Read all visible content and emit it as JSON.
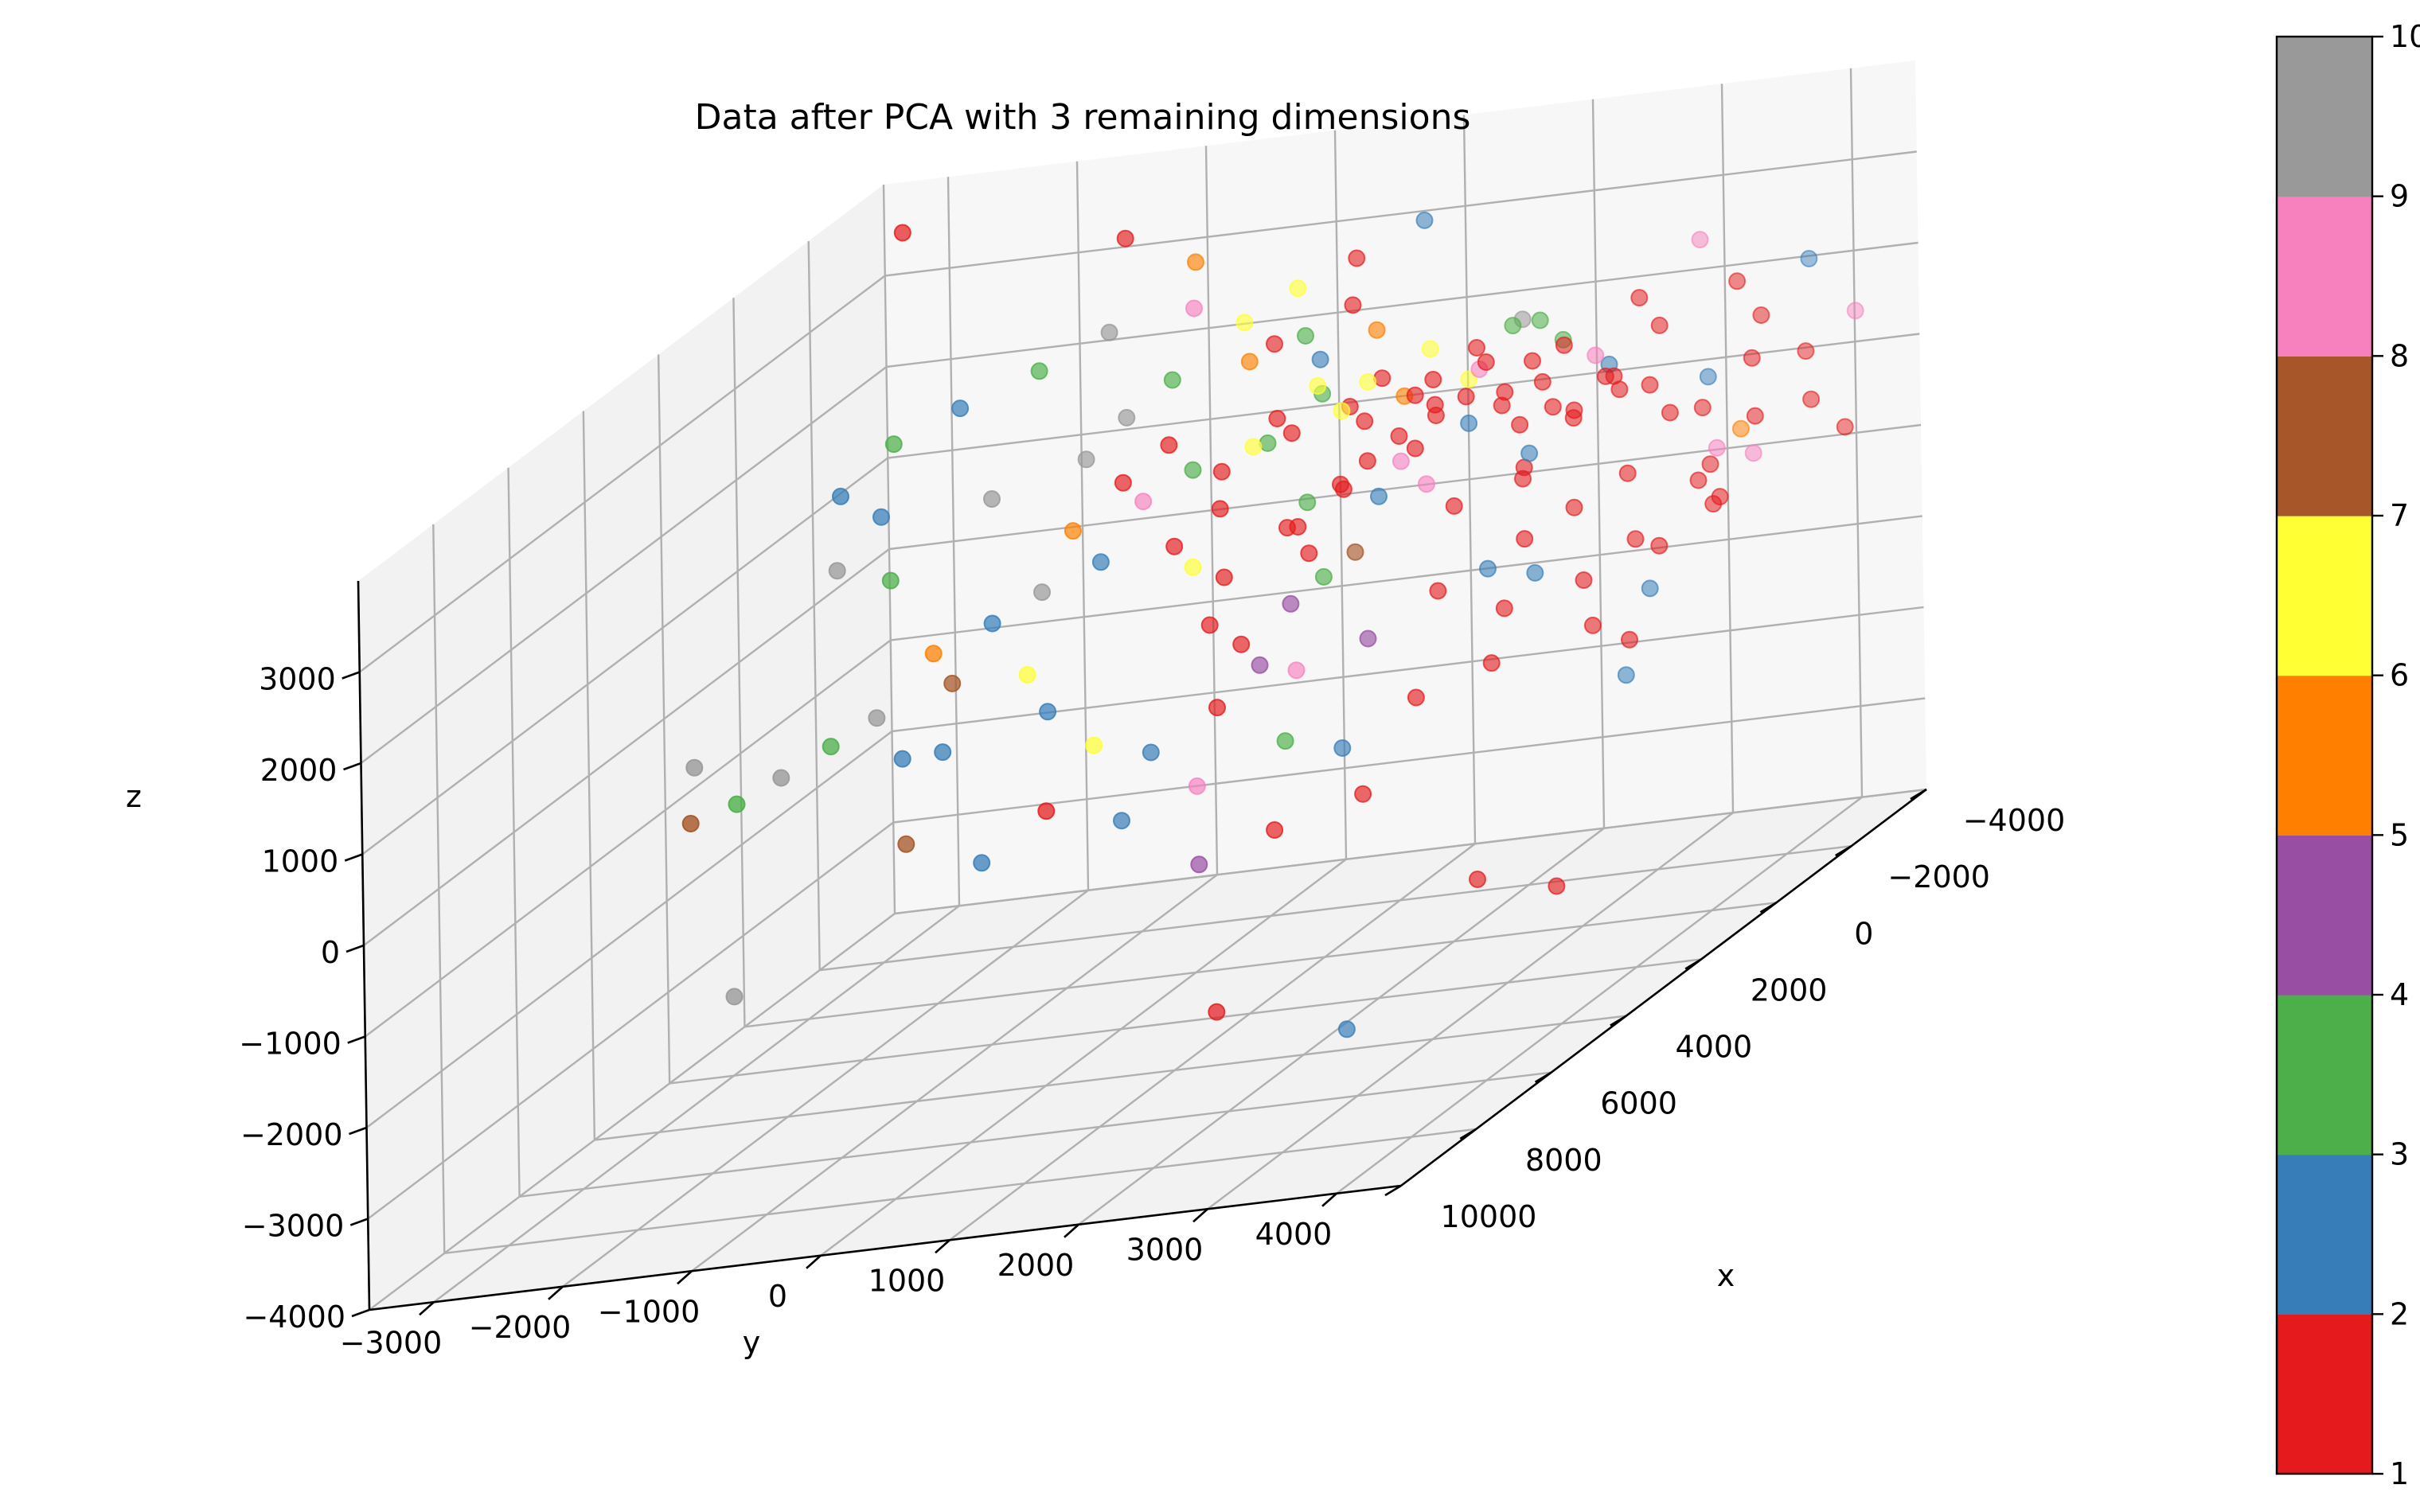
{
  "chart_data": {
    "type": "scatter",
    "projection": "3d",
    "title": "Data after PCA with 3 remaining dimensions",
    "xlabel": "x",
    "ylabel": "y",
    "zlabel": "z",
    "xlim": [
      -4000,
      10000
    ],
    "ylim": [
      -3500,
      4500
    ],
    "zlim": [
      -4000,
      4000
    ],
    "xticks": [
      "−4000",
      "−2000",
      "0",
      "2000",
      "4000",
      "6000",
      "8000",
      "10000"
    ],
    "yticks": [
      "−3000",
      "−2000",
      "−1000",
      "0",
      "1000",
      "2000",
      "3000",
      "4000"
    ],
    "zticks": [
      "−4000",
      "−3000",
      "−2000",
      "−1000",
      "0",
      "1000",
      "2000",
      "3000"
    ],
    "grid": true,
    "colormap": "Set1",
    "colorbar": {
      "range": [
        1,
        10
      ],
      "ticks": [
        "1",
        "2",
        "3",
        "4",
        "5",
        "6",
        "7",
        "8",
        "9",
        "10"
      ],
      "colors": [
        "#e41a1c",
        "#377eb8",
        "#4daf4a",
        "#984ea3",
        "#ff7f00",
        "#ffff33",
        "#a65628",
        "#f781bf",
        "#999999"
      ]
    },
    "points": [
      {
        "x": -3800,
        "y": -3300,
        "z": 3500,
        "c": 1
      },
      {
        "x": 600,
        "y": -3400,
        "z": -3500,
        "c": 9
      },
      {
        "x": 800,
        "y": 3600,
        "z": -1100,
        "c": 2
      },
      {
        "x": -2000,
        "y": 4500,
        "z": 600,
        "c": 1
      },
      {
        "x": -1500,
        "y": 3600,
        "z": 500,
        "c": 1
      },
      {
        "x": 500,
        "y": 3600,
        "z": 300,
        "c": 1
      },
      {
        "x": 1800,
        "y": 3200,
        "z": 400,
        "c": 2
      },
      {
        "x": -500,
        "y": 3800,
        "z": 600,
        "c": 1
      },
      {
        "x": -1300,
        "y": 3900,
        "z": 900,
        "c": 5
      },
      {
        "x": -1000,
        "y": 3800,
        "z": 800,
        "c": 8
      },
      {
        "x": -2500,
        "y": 3300,
        "z": 1200,
        "c": 2
      },
      {
        "x": -2000,
        "y": 3400,
        "z": 1000,
        "c": 1
      },
      {
        "x": -300,
        "y": 2500,
        "z": 900,
        "c": 1
      },
      {
        "x": 0,
        "y": 2600,
        "z": 1100,
        "c": 1
      },
      {
        "x": 200,
        "y": 2700,
        "z": 1300,
        "c": 2
      },
      {
        "x": -1000,
        "y": 2700,
        "z": 1400,
        "c": 1
      },
      {
        "x": -1500,
        "y": 2800,
        "z": 1600,
        "c": 1
      },
      {
        "x": -1200,
        "y": 2400,
        "z": 1700,
        "c": 1
      },
      {
        "x": -800,
        "y": 2200,
        "z": 1600,
        "c": 1
      },
      {
        "x": -600,
        "y": 2000,
        "z": 1500,
        "c": 2
      },
      {
        "x": -400,
        "y": 1800,
        "z": 1800,
        "c": 1
      },
      {
        "x": -200,
        "y": 2100,
        "z": 1900,
        "c": 1
      },
      {
        "x": -600,
        "y": 2500,
        "z": 2100,
        "c": 1
      },
      {
        "x": -900,
        "y": 2000,
        "z": 2000,
        "c": 8
      },
      {
        "x": -1300,
        "y": 1800,
        "z": 1800,
        "c": 6
      },
      {
        "x": -1100,
        "y": 1600,
        "z": 1500,
        "c": 1
      },
      {
        "x": -800,
        "y": 1400,
        "z": 1400,
        "c": 1
      },
      {
        "x": -500,
        "y": 1500,
        "z": 1200,
        "c": 8
      },
      {
        "x": -300,
        "y": 1300,
        "z": 1300,
        "c": 1
      },
      {
        "x": 0,
        "y": 1200,
        "z": 1100,
        "c": 1
      },
      {
        "x": 100,
        "y": 1500,
        "z": 1000,
        "c": 2
      },
      {
        "x": -600,
        "y": 1000,
        "z": 1000,
        "c": 1
      },
      {
        "x": -400,
        "y": 800,
        "z": 900,
        "c": 3
      },
      {
        "x": -200,
        "y": 700,
        "z": 700,
        "c": 1
      },
      {
        "x": 200,
        "y": 900,
        "z": 800,
        "c": 1
      },
      {
        "x": 600,
        "y": 1100,
        "z": 600,
        "c": 1
      },
      {
        "x": 400,
        "y": 1400,
        "z": 500,
        "c": 7
      },
      {
        "x": 900,
        "y": 1300,
        "z": 400,
        "c": 3
      },
      {
        "x": 1100,
        "y": 1100,
        "z": 200,
        "c": 4
      },
      {
        "x": 1400,
        "y": 800,
        "z": -100,
        "c": 1
      },
      {
        "x": 1600,
        "y": 1000,
        "z": -300,
        "c": 4
      },
      {
        "x": 1200,
        "y": 500,
        "z": 100,
        "c": 1
      },
      {
        "x": 800,
        "y": 500,
        "z": 500,
        "c": 1
      },
      {
        "x": 600,
        "y": 200,
        "z": 600,
        "c": 6
      },
      {
        "x": 400,
        "y": 0,
        "z": 800,
        "c": 1
      },
      {
        "x": 200,
        "y": 300,
        "z": 1100,
        "c": 1
      },
      {
        "x": -200,
        "y": 200,
        "z": 1400,
        "c": 1
      },
      {
        "x": -400,
        "y": 500,
        "z": 1600,
        "c": 3
      },
      {
        "x": -700,
        "y": 300,
        "z": 1500,
        "c": 6
      },
      {
        "x": -1000,
        "y": 400,
        "z": 1700,
        "c": 1
      },
      {
        "x": -1400,
        "y": 600,
        "z": 1900,
        "c": 6
      },
      {
        "x": -1700,
        "y": 900,
        "z": 1800,
        "c": 6
      },
      {
        "x": -2000,
        "y": 1300,
        "z": 2000,
        "c": 6
      },
      {
        "x": -2200,
        "y": 1600,
        "z": 1900,
        "c": 1
      },
      {
        "x": -1800,
        "y": 2000,
        "z": 2200,
        "c": 3
      },
      {
        "x": -1500,
        "y": 2300,
        "z": 2300,
        "c": 3
      },
      {
        "x": -1100,
        "y": 2600,
        "z": 2100,
        "c": 1
      },
      {
        "x": -900,
        "y": 2900,
        "z": 2000,
        "c": 8
      },
      {
        "x": -700,
        "y": 3100,
        "z": 1800,
        "c": 1
      },
      {
        "x": -500,
        "y": 3200,
        "z": 1700,
        "c": 1
      },
      {
        "x": -300,
        "y": 2900,
        "z": 1500,
        "c": 1
      },
      {
        "x": -100,
        "y": 2800,
        "z": 1700,
        "c": 1
      },
      {
        "x": 100,
        "y": 2600,
        "z": 1600,
        "c": 1
      },
      {
        "x": -200,
        "y": 2400,
        "z": 1900,
        "c": 1
      },
      {
        "x": -400,
        "y": 2200,
        "z": 2200,
        "c": 1
      },
      {
        "x": -700,
        "y": 1700,
        "z": 2000,
        "c": 1
      },
      {
        "x": -900,
        "y": 1500,
        "z": 1800,
        "c": 1
      },
      {
        "x": -1300,
        "y": 1300,
        "z": 1700,
        "c": 5
      },
      {
        "x": -1600,
        "y": 900,
        "z": 1400,
        "c": 1
      },
      {
        "x": -1900,
        "y": 700,
        "z": 1500,
        "c": 1
      },
      {
        "x": -2200,
        "y": 400,
        "z": 1600,
        "c": 3
      },
      {
        "x": -2500,
        "y": 300,
        "z": 1900,
        "c": 2
      },
      {
        "x": -2800,
        "y": 100,
        "z": 2100,
        "c": 3
      },
      {
        "x": -3000,
        "y": -200,
        "z": 2000,
        "c": 1
      },
      {
        "x": -2900,
        "y": -400,
        "z": 2300,
        "c": 6
      },
      {
        "x": -3300,
        "y": -100,
        "z": 2500,
        "c": 6
      },
      {
        "x": -3500,
        "y": 300,
        "z": 2700,
        "c": 1
      },
      {
        "x": -2700,
        "y": 500,
        "z": 2400,
        "c": 1
      },
      {
        "x": -2300,
        "y": 800,
        "z": 2200,
        "c": 5
      },
      {
        "x": -3600,
        "y": 800,
        "z": 3000,
        "c": 2
      },
      {
        "x": -3000,
        "y": -800,
        "z": 3000,
        "c": 5
      },
      {
        "x": -3200,
        "y": -1400,
        "z": 3300,
        "c": 1
      },
      {
        "x": -2000,
        "y": -700,
        "z": 2000,
        "c": 3
      },
      {
        "x": -1800,
        "y": -1000,
        "z": 1700,
        "c": 9
      },
      {
        "x": -1400,
        "y": -1200,
        "z": 1400,
        "c": 9
      },
      {
        "x": -1000,
        "y": -800,
        "z": 1200,
        "c": 1
      },
      {
        "x": -1200,
        "y": -500,
        "z": 1500,
        "c": 1
      },
      {
        "x": -800,
        "y": -200,
        "z": 1300,
        "c": 3
      },
      {
        "x": -500,
        "y": -500,
        "z": 1100,
        "c": 8
      },
      {
        "x": 0,
        "y": -900,
        "z": 1000,
        "c": 5
      },
      {
        "x": 300,
        "y": -600,
        "z": 700,
        "c": 2
      },
      {
        "x": 500,
        "y": -1000,
        "z": 500,
        "c": 9
      },
      {
        "x": 800,
        "y": -1300,
        "z": 300,
        "c": 2
      },
      {
        "x": 1000,
        "y": -1700,
        "z": 100,
        "c": 5
      },
      {
        "x": 1200,
        "y": -1500,
        "z": -200,
        "c": 7
      },
      {
        "x": 1500,
        "y": -2000,
        "z": -400,
        "c": 9
      },
      {
        "x": 1700,
        "y": -2300,
        "z": -600,
        "c": 3
      },
      {
        "x": 2000,
        "y": -2600,
        "z": -800,
        "c": 9
      },
      {
        "x": 2200,
        "y": -1600,
        "z": -700,
        "c": 2
      },
      {
        "x": 2500,
        "y": -1200,
        "z": -600,
        "c": 2
      },
      {
        "x": 1600,
        "y": -800,
        "z": -100,
        "c": 6
      },
      {
        "x": 2100,
        "y": -500,
        "z": -400,
        "c": 2
      },
      {
        "x": 2600,
        "y": 0,
        "z": -700,
        "c": 6
      },
      {
        "x": 2800,
        "y": 500,
        "z": -800,
        "c": 2
      },
      {
        "x": 2400,
        "y": 900,
        "z": -500,
        "c": 1
      },
      {
        "x": 2000,
        "y": 1400,
        "z": -300,
        "c": 8
      },
      {
        "x": 1800,
        "y": 1900,
        "z": -100,
        "c": 4
      },
      {
        "x": 3000,
        "y": 1600,
        "z": -800,
        "c": 3
      },
      {
        "x": 3200,
        "y": 2100,
        "z": -900,
        "c": 2
      },
      {
        "x": 2600,
        "y": 2500,
        "z": -600,
        "c": 1
      },
      {
        "x": 2300,
        "y": 3000,
        "z": -400,
        "c": 1
      },
      {
        "x": 3300,
        "y": 1000,
        "z": -1100,
        "c": 8
      },
      {
        "x": 3600,
        "y": 500,
        "z": -1300,
        "c": 2
      },
      {
        "x": 3200,
        "y": -200,
        "z": -1200,
        "c": 1
      },
      {
        "x": 3900,
        "y": -500,
        "z": -1500,
        "c": 2
      },
      {
        "x": 3500,
        "y": -1200,
        "z": -1300,
        "c": 7
      },
      {
        "x": 4000,
        "y": 1800,
        "z": -1500,
        "c": 1
      },
      {
        "x": 4300,
        "y": 1300,
        "z": -1700,
        "c": 4
      },
      {
        "x": 3700,
        "y": 2400,
        "z": -1300,
        "c": 1
      },
      {
        "x": 2500,
        "y": -2800,
        "z": -900,
        "c": 3
      },
      {
        "x": 1900,
        "y": -3300,
        "z": -600,
        "c": 9
      },
      {
        "x": 2700,
        "y": -3100,
        "z": -1000,
        "c": 7
      },
      {
        "x": 400,
        "y": -2200,
        "z": 800,
        "c": 3
      },
      {
        "x": 100,
        "y": -2700,
        "z": 900,
        "c": 9
      },
      {
        "x": -400,
        "y": -2500,
        "z": 1300,
        "c": 2
      },
      {
        "x": -700,
        "y": -2900,
        "z": 1500,
        "c": 2
      },
      {
        "x": -1100,
        "y": -2600,
        "z": 1900,
        "c": 3
      },
      {
        "x": -1500,
        "y": -2200,
        "z": 2100,
        "c": 2
      },
      {
        "x": -600,
        "y": -1700,
        "z": 1300,
        "c": 9
      },
      {
        "x": -1900,
        "y": -1700,
        "z": 2300,
        "c": 3
      },
      {
        "x": -2400,
        "y": -1300,
        "z": 2500,
        "c": 9
      },
      {
        "x": -2600,
        "y": -700,
        "z": 2600,
        "c": 8
      },
      {
        "x": -2400,
        "y": 1900,
        "z": 2100,
        "c": 9
      },
      {
        "x": -2100,
        "y": 2300,
        "z": 1900,
        "c": 3
      },
      {
        "x": -1600,
        "y": 2800,
        "z": 1700,
        "c": 2
      },
      {
        "x": -1300,
        "y": 3200,
        "z": 1500,
        "c": 1
      },
      {
        "x": -800,
        "y": 3500,
        "z": 1300,
        "c": 1
      },
      {
        "x": -1000,
        "y": 4100,
        "z": 1100,
        "c": 1
      },
      {
        "x": -1800,
        "y": 4300,
        "z": 1000,
        "c": 1
      },
      {
        "x": -600,
        "y": 4200,
        "z": 800,
        "c": 8
      },
      {
        "x": 0,
        "y": 3400,
        "z": 900,
        "c": 1
      },
      {
        "x": 400,
        "y": 3100,
        "z": 700,
        "c": 1
      },
      {
        "x": 700,
        "y": 2800,
        "z": 500,
        "c": 1
      },
      {
        "x": 1000,
        "y": 2600,
        "z": 300,
        "c": 2
      },
      {
        "x": 1300,
        "y": 2300,
        "z": 200,
        "c": 1
      },
      {
        "x": 1600,
        "y": 2900,
        "z": 0,
        "c": 1
      },
      {
        "x": 1200,
        "y": 3400,
        "z": 100,
        "c": 1
      },
      {
        "x": 900,
        "y": 3900,
        "z": 300,
        "c": 1
      },
      {
        "x": 300,
        "y": 4200,
        "z": 600,
        "c": 1
      },
      {
        "x": 1500,
        "y": 4000,
        "z": 0,
        "c": 2
      },
      {
        "x": 2000,
        "y": 3700,
        "z": -200,
        "c": 1
      },
      {
        "x": 2400,
        "y": 4100,
        "z": -300,
        "c": 1
      },
      {
        "x": -2700,
        "y": 4000,
        "z": 1300,
        "c": 1
      },
      {
        "x": -2300,
        "y": 3700,
        "z": 1400,
        "c": 1
      },
      {
        "x": -3000,
        "y": 4300,
        "z": 1600,
        "c": 8
      },
      {
        "x": -200,
        "y": 4000,
        "z": 400,
        "c": 1
      },
      {
        "x": -2600,
        "y": 2900,
        "z": 1800,
        "c": 1
      },
      {
        "x": -3100,
        "y": 2600,
        "z": 2000,
        "c": 1
      },
      {
        "x": -3300,
        "y": 3300,
        "z": 2000,
        "c": 1
      },
      {
        "x": -2900,
        "y": 3600,
        "z": 1700,
        "c": 1
      },
      {
        "x": -3500,
        "y": 3800,
        "z": 2100,
        "c": 2
      },
      {
        "x": -3700,
        "y": 2900,
        "z": 2400,
        "c": 8
      },
      {
        "x": -1400,
        "y": 1100,
        "z": 1900,
        "c": 1
      },
      {
        "x": -1000,
        "y": 900,
        "z": 1700,
        "c": 6
      },
      {
        "x": -200,
        "y": 1700,
        "z": 1400,
        "c": 1
      },
      {
        "x": 200,
        "y": 1900,
        "z": 1100,
        "c": 8
      },
      {
        "x": 500,
        "y": 2200,
        "z": 900,
        "c": 1
      },
      {
        "x": -700,
        "y": 600,
        "z": 1600,
        "c": 1
      },
      {
        "x": -2000,
        "y": -100,
        "z": 2100,
        "c": 5
      },
      {
        "x": 4800,
        "y": 3600,
        "z": -2100,
        "c": 1
      },
      {
        "x": 5100,
        "y": 4300,
        "z": -2200,
        "c": 1
      },
      {
        "x": 6600,
        "y": 3100,
        "z": -3100,
        "c": 2
      },
      {
        "x": 5600,
        "y": 1800,
        "z": -3000,
        "c": 1
      }
    ]
  }
}
